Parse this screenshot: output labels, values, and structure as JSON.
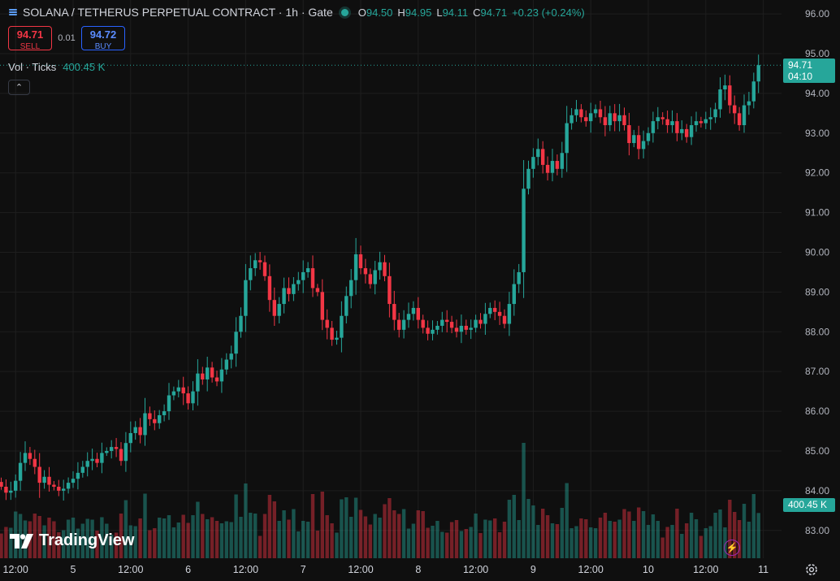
{
  "header": {
    "symbol": "SOLANA / TETHERUS PERPETUAL CONTRACT · 1h · Gate",
    "o_label": "O",
    "o_value": "94.50",
    "h_label": "H",
    "h_value": "94.95",
    "l_label": "L",
    "l_value": "94.11",
    "c_label": "C",
    "c_value": "94.71",
    "change": "+0.23 (+0.24%)"
  },
  "trade": {
    "sell_price": "94.71",
    "sell_label": "SELL",
    "spread": "0.01",
    "buy_price": "94.72",
    "buy_label": "BUY"
  },
  "volume_legend": {
    "label": "Vol · Ticks",
    "value": "400.45 K"
  },
  "price_tag": {
    "price": "94.71",
    "countdown": "04:10"
  },
  "volume_tag": "400.45 K",
  "logo": "TradingView",
  "colors": {
    "up": "#26a69a",
    "down": "#f23645",
    "background": "#0f0f0f",
    "grid": "#1e1e1e"
  },
  "icons": [
    "menu-icon",
    "chevron-up-icon",
    "lightning-icon",
    "gear-icon"
  ],
  "chart_data": {
    "type": "candlestick",
    "y_ticks": [
      "96.00",
      "95.00",
      "94.00",
      "93.00",
      "92.00",
      "91.00",
      "90.00",
      "89.00",
      "88.00",
      "87.00",
      "86.00",
      "85.00",
      "84.00",
      "83.00"
    ],
    "ylim": [
      82.3,
      96.35
    ],
    "x_ticks": [
      {
        "label": "12:00",
        "index": 3
      },
      {
        "label": "5",
        "index": 15
      },
      {
        "label": "12:00",
        "index": 27
      },
      {
        "label": "6",
        "index": 39
      },
      {
        "label": "12:00",
        "index": 51
      },
      {
        "label": "7",
        "index": 63
      },
      {
        "label": "12:00",
        "index": 75
      },
      {
        "label": "8",
        "index": 87
      },
      {
        "label": "12:00",
        "index": 99
      },
      {
        "label": "9",
        "index": 111
      },
      {
        "label": "12:00",
        "index": 123
      },
      {
        "label": "10",
        "index": 135
      },
      {
        "label": "12:00",
        "index": 147
      },
      {
        "label": "11",
        "index": 159
      }
    ],
    "last_price": 94.71,
    "close": [
      84.1,
      83.95,
      84.0,
      84.25,
      84.7,
      84.95,
      84.8,
      84.6,
      84.2,
      84.35,
      84.15,
      84.1,
      84.0,
      84.05,
      84.2,
      84.3,
      84.45,
      84.6,
      84.75,
      84.8,
      84.7,
      84.95,
      85.0,
      85.1,
      85.05,
      84.75,
      85.2,
      85.45,
      85.6,
      85.4,
      85.95,
      85.8,
      85.7,
      85.9,
      86.0,
      86.4,
      86.5,
      86.6,
      86.45,
      86.2,
      86.5,
      86.95,
      86.8,
      87.1,
      86.85,
      86.75,
      87.05,
      87.3,
      87.45,
      88.0,
      88.4,
      89.3,
      89.6,
      89.8,
      89.75,
      89.4,
      88.8,
      88.4,
      88.7,
      89.1,
      88.95,
      89.2,
      89.3,
      89.5,
      89.6,
      89.1,
      89.0,
      88.3,
      88.1,
      87.8,
      87.85,
      88.4,
      88.9,
      89.3,
      89.95,
      89.6,
      89.45,
      89.2,
      89.55,
      89.75,
      89.4,
      88.7,
      88.3,
      88.05,
      88.3,
      88.45,
      88.6,
      88.3,
      88.1,
      87.95,
      88.05,
      88.15,
      88.3,
      88.25,
      88.1,
      88.0,
      88.15,
      88.05,
      88.1,
      88.3,
      88.2,
      88.45,
      88.6,
      88.5,
      88.4,
      88.2,
      88.7,
      89.2,
      89.5,
      91.6,
      92.1,
      92.4,
      92.6,
      92.2,
      92.0,
      92.3,
      92.1,
      92.5,
      93.25,
      93.45,
      93.6,
      93.4,
      93.3,
      93.5,
      93.6,
      93.4,
      93.2,
      93.5,
      93.3,
      93.45,
      93.2,
      92.75,
      92.95,
      92.6,
      92.8,
      93.0,
      93.3,
      93.4,
      93.35,
      93.2,
      93.3,
      93.0,
      93.1,
      92.9,
      93.2,
      93.3,
      93.25,
      93.35,
      93.4,
      93.6,
      94.1,
      94.2,
      93.7,
      93.5,
      93.2,
      93.7,
      93.8,
      94.3,
      94.71
    ]
  }
}
